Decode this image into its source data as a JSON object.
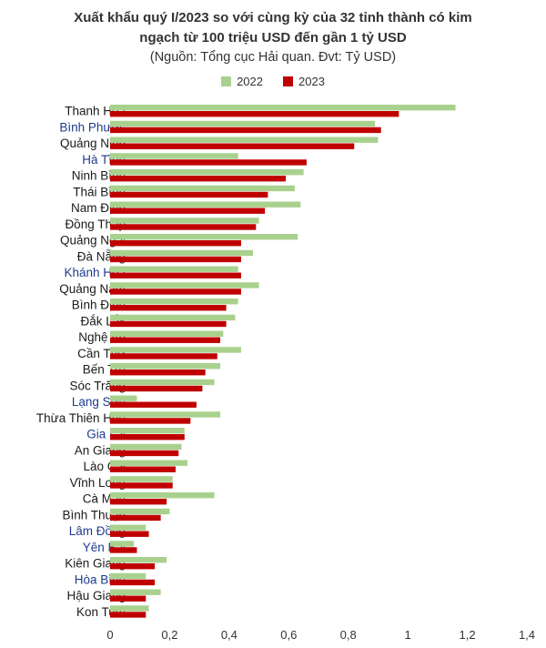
{
  "chart_data": {
    "type": "bar",
    "orientation": "horizontal",
    "title_lines": [
      "Xuất khẩu quý I/2023 so với cùng kỳ của 32 tỉnh thành có kim",
      "ngạch từ 100 triệu USD đến gần 1 tỷ USD"
    ],
    "subtitle": "(Nguồn: Tổng cục Hải quan. Đvt: Tỷ USD)",
    "legend_position": "top-center",
    "grid": false,
    "xlim": [
      0,
      1.4
    ],
    "x_ticks": [
      "0",
      "0,2",
      "0,4",
      "0,6",
      "0,8",
      "1",
      "1,2",
      "1,4"
    ],
    "categories": [
      "Thanh Hóa",
      "Bình Phước",
      "Quảng Ninh",
      "Hà Tĩnh",
      "Ninh Bình",
      "Thái Bình",
      "Nam Định",
      "Đồng Tháp",
      "Quảng Ngãi",
      "Đà Nẵng",
      "Khánh Hòa",
      "Quảng Nam",
      "Bình Định",
      "Đắk Lắk",
      "Nghệ An",
      "Cần Thơ",
      "Bến Tre",
      "Sóc Trăng",
      "Lạng Sơn",
      "Thừa Thiên Huế",
      "Gia Lai",
      "An Giang",
      "Lào Cai",
      "Vĩnh Long",
      "Cà Mau",
      "Bình Thuận",
      "Lâm Đồng",
      "Yên Bái",
      "Kiên Giang",
      "Hòa Bình",
      "Hậu Giang",
      "Kon Tum"
    ],
    "highlighted_categories": [
      "Bình Phước",
      "Hà Tĩnh",
      "Khánh Hòa",
      "Lạng Sơn",
      "Gia Lai",
      "Lâm Đồng",
      "Yên Bái",
      "Hòa Bình"
    ],
    "series": [
      {
        "name": "2022",
        "color": "#a9d18e",
        "values": [
          1.16,
          0.89,
          0.9,
          0.43,
          0.65,
          0.62,
          0.64,
          0.5,
          0.63,
          0.48,
          0.43,
          0.5,
          0.43,
          0.42,
          0.38,
          0.44,
          0.37,
          0.35,
          0.09,
          0.37,
          0.25,
          0.24,
          0.26,
          0.21,
          0.35,
          0.2,
          0.12,
          0.08,
          0.19,
          0.12,
          0.17,
          0.13
        ]
      },
      {
        "name": "2023",
        "color": "#c00000",
        "values": [
          0.97,
          0.91,
          0.82,
          0.66,
          0.59,
          0.53,
          0.52,
          0.49,
          0.44,
          0.44,
          0.44,
          0.44,
          0.39,
          0.39,
          0.37,
          0.36,
          0.32,
          0.31,
          0.29,
          0.27,
          0.25,
          0.23,
          0.22,
          0.21,
          0.19,
          0.17,
          0.13,
          0.09,
          0.15,
          0.15,
          0.12,
          0.12
        ]
      }
    ],
    "colors": {
      "normal_label": "#1a1a1a",
      "highlight_label": "#1f3b8f"
    }
  }
}
